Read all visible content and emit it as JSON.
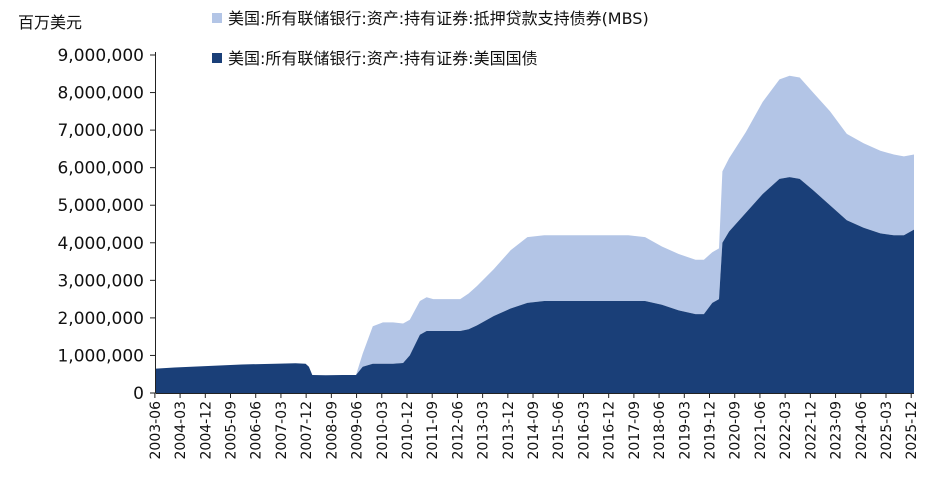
{
  "chart_data": {
    "type": "area",
    "stacked": true,
    "unit_label": "百万美元",
    "ylim": [
      0,
      9000000
    ],
    "yticks": [
      "0",
      "1,000,000",
      "2,000,000",
      "3,000,000",
      "4,000,000",
      "5,000,000",
      "6,000,000",
      "7,000,000",
      "8,000,000",
      "9,000,000"
    ],
    "xticks": [
      "2003-06",
      "2004-03",
      "2004-12",
      "2005-09",
      "2006-06",
      "2007-03",
      "2007-12",
      "2008-09",
      "2009-06",
      "2010-03",
      "2010-12",
      "2011-09",
      "2012-06",
      "2013-03",
      "2013-12",
      "2014-09",
      "2015-06",
      "2016-03",
      "2016-12",
      "2017-09",
      "2018-06",
      "2019-03",
      "2019-12",
      "2020-09",
      "2021-06",
      "2022-03",
      "2022-12",
      "2023-09",
      "2024-06",
      "2025-03",
      "2025-12"
    ],
    "grid": false,
    "legend_position": "top",
    "x": [
      2003.45,
      2004.0,
      2005.0,
      2006.0,
      2007.0,
      2007.6,
      2007.9,
      2008.0,
      2008.1,
      2008.5,
      2009.0,
      2009.4,
      2009.6,
      2009.9,
      2010.2,
      2010.5,
      2010.8,
      2011.0,
      2011.3,
      2011.5,
      2011.7,
      2012.0,
      2012.5,
      2012.75,
      2013.0,
      2013.5,
      2014.0,
      2014.5,
      2015.0,
      2015.5,
      2016.0,
      2016.5,
      2017.0,
      2017.5,
      2018.0,
      2018.5,
      2019.0,
      2019.5,
      2019.75,
      2020.0,
      2020.2,
      2020.3,
      2020.5,
      2021.0,
      2021.5,
      2022.0,
      2022.3,
      2022.6,
      2023.0,
      2023.5,
      2024.0,
      2024.5,
      2025.0,
      2025.4,
      2025.7,
      2026.0
    ],
    "series": [
      {
        "name": "美国:所有联储银行:资产:持有证券:美国国债",
        "color": "#1a3f78",
        "values": [
          650000,
          680000,
          720000,
          760000,
          780000,
          790000,
          780000,
          700000,
          480000,
          475000,
          480000,
          480000,
          700000,
          780000,
          780000,
          780000,
          800000,
          1000000,
          1550000,
          1650000,
          1650000,
          1650000,
          1650000,
          1700000,
          1800000,
          2050000,
          2250000,
          2400000,
          2450000,
          2450000,
          2450000,
          2450000,
          2450000,
          2450000,
          2450000,
          2350000,
          2200000,
          2100000,
          2100000,
          2400000,
          2500000,
          4000000,
          4300000,
          4800000,
          5300000,
          5700000,
          5750000,
          5700000,
          5400000,
          5000000,
          4600000,
          4400000,
          4250000,
          4200000,
          4200000,
          4350000
        ]
      },
      {
        "name": "美国:所有联储银行:资产:持有证券:抵押贷款支持债券(MBS)",
        "color": "#b3c5e6",
        "values": [
          0,
          0,
          0,
          0,
          0,
          0,
          0,
          0,
          0,
          0,
          0,
          0,
          350000,
          1000000,
          1100000,
          1100000,
          1050000,
          950000,
          900000,
          900000,
          850000,
          850000,
          850000,
          950000,
          1050000,
          1250000,
          1550000,
          1750000,
          1750000,
          1750000,
          1750000,
          1750000,
          1750000,
          1750000,
          1700000,
          1550000,
          1500000,
          1450000,
          1450000,
          1350000,
          1350000,
          1900000,
          1950000,
          2150000,
          2450000,
          2650000,
          2700000,
          2700000,
          2600000,
          2500000,
          2300000,
          2250000,
          2200000,
          2150000,
          2100000,
          2000000
        ]
      }
    ]
  }
}
